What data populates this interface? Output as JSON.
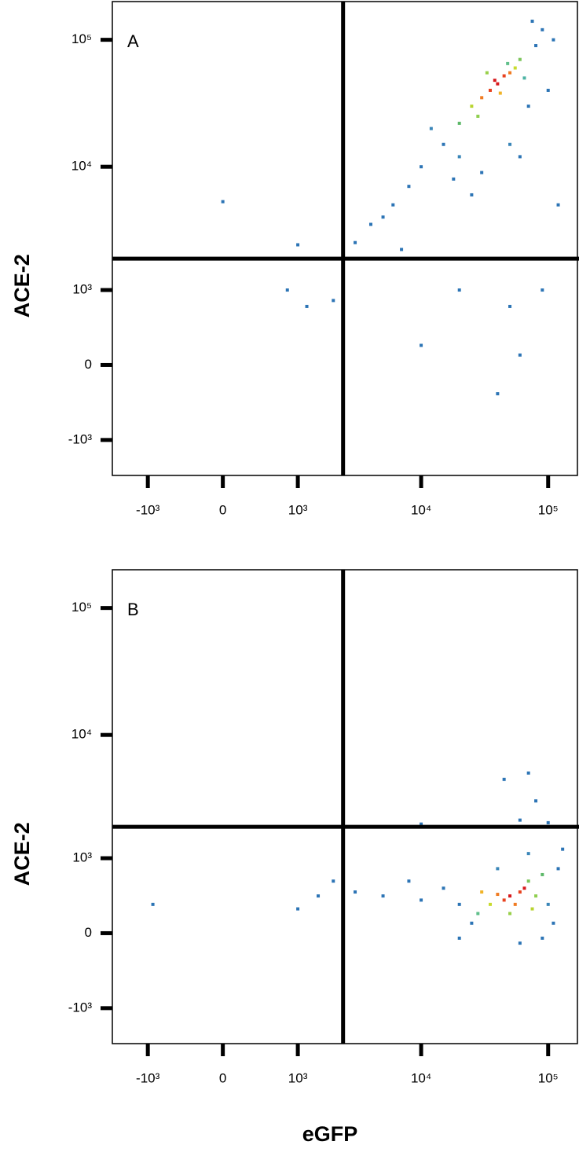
{
  "chart_data": [
    {
      "type": "scatter",
      "panel_label": "A",
      "y_label": "ACE-2",
      "xscale": "logicle",
      "yscale": "logicle",
      "xlim": [
        -2000,
        170000
      ],
      "ylim": [
        -2000,
        200000
      ],
      "xticks": [
        {
          "value": -1000,
          "label": "-10³"
        },
        0,
        {
          "value": 1000,
          "label": "10³"
        },
        {
          "value": 10000,
          "label": "10⁴"
        },
        {
          "value": 100000,
          "label": "10⁵"
        }
      ],
      "yticks": [
        {
          "value": -1000,
          "label": "-10³"
        },
        0,
        {
          "value": 1000,
          "label": "10³"
        },
        {
          "value": 10000,
          "label": "10⁴"
        },
        {
          "value": 100000,
          "label": "10⁵"
        }
      ],
      "gates": {
        "x": 2400,
        "y": 1850
      },
      "x": [
        40000,
        35000,
        45000,
        30000,
        50000,
        38000,
        25000,
        55000,
        60000,
        28000,
        42000,
        20000,
        65000,
        33000,
        48000,
        15000,
        10000,
        80000,
        90000,
        12000,
        18000,
        70000,
        100000,
        6000,
        4000,
        8000,
        30000,
        50000,
        20000,
        110000,
        75000,
        3000,
        5000,
        7000,
        25000,
        60000,
        120000,
        0,
        1000,
        800,
        1200,
        2000,
        10000,
        60000,
        40000,
        50000,
        90000,
        20000
      ],
      "y": [
        45000,
        40000,
        52000,
        35000,
        55000,
        48000,
        30000,
        60000,
        70000,
        25000,
        38000,
        22000,
        50000,
        55000,
        65000,
        15000,
        10000,
        90000,
        120000,
        20000,
        8000,
        30000,
        40000,
        5000,
        3500,
        7000,
        9000,
        15000,
        12000,
        100000,
        140000,
        2500,
        4000,
        2200,
        6000,
        12000,
        5000,
        5300,
        2400,
        1000,
        700,
        800,
        200,
        100,
        -300,
        700,
        1000,
        1000
      ],
      "point_colors": [
        "#d7191c",
        "#e8421f",
        "#e8421f",
        "#f07b22",
        "#f07b22",
        "#d7191c",
        "#b8d430",
        "#c8db2e",
        "#7cc55a",
        "#8fcf4f",
        "#f0b327",
        "#5cb868",
        "#4cb3a3",
        "#99d04a",
        "#5fbf8a",
        "#2c74b5",
        "#2c74b5",
        "#2c74b5",
        "#2c74b5",
        "#3a86b8",
        "#2c74b5",
        "#2c74b5",
        "#2c74b5",
        "#2c74b5",
        "#2c74b5",
        "#2c74b5",
        "#2c74b5",
        "#3a86b8",
        "#3a86b8",
        "#2c74b5",
        "#2c74b5",
        "#2c74b5",
        "#2c74b5",
        "#2c74b5",
        "#2c74b5",
        "#2c74b5",
        "#2c74b5",
        "#2c74b5",
        "#2c74b5",
        "#2c74b5",
        "#2c74b5",
        "#2c74b5",
        "#2c74b5",
        "#2c74b5",
        "#2c74b5",
        "#2c74b5",
        "#2c74b5",
        "#2c74b5"
      ]
    },
    {
      "type": "scatter",
      "panel_label": "B",
      "y_label": "ACE-2",
      "x_label": "eGFP",
      "xscale": "logicle",
      "yscale": "logicle",
      "xlim": [
        -2000,
        170000
      ],
      "ylim": [
        -2000,
        200000
      ],
      "xticks": [
        {
          "value": -1000,
          "label": "-10³"
        },
        0,
        {
          "value": 1000,
          "label": "10³"
        },
        {
          "value": 10000,
          "label": "10⁴"
        },
        {
          "value": 100000,
          "label": "10⁵"
        }
      ],
      "yticks": [
        {
          "value": -1000,
          "label": "-10³"
        },
        0,
        {
          "value": 1000,
          "label": "10³"
        },
        {
          "value": 10000,
          "label": "10⁴"
        },
        {
          "value": 100000,
          "label": "10⁵"
        }
      ],
      "gates": {
        "x": 2400,
        "y": 1850
      },
      "x": [
        50000,
        60000,
        45000,
        55000,
        65000,
        40000,
        35000,
        70000,
        80000,
        30000,
        90000,
        50000,
        75000,
        28000,
        20000,
        15000,
        10000,
        120000,
        100000,
        25000,
        60000,
        90000,
        5000,
        3000,
        8000,
        130000,
        40000,
        70000,
        20000,
        110000,
        45000,
        70000,
        80000,
        60000,
        10000,
        100000,
        -900,
        1000,
        1500,
        2000
      ],
      "y": [
        400,
        450,
        350,
        300,
        500,
        420,
        300,
        600,
        400,
        450,
        700,
        200,
        250,
        200,
        300,
        500,
        350,
        800,
        300,
        100,
        -100,
        -50,
        400,
        450,
        600,
        1200,
        800,
        1100,
        -50,
        100,
        4450,
        5000,
        3000,
        2100,
        1950,
        2000,
        300,
        250,
        400,
        600
      ],
      "point_colors": [
        "#d7191c",
        "#e8421f",
        "#e8421f",
        "#f07b22",
        "#d7191c",
        "#f07b22",
        "#c8db2e",
        "#7cc55a",
        "#8fcf4f",
        "#f0b327",
        "#5cb868",
        "#99d04a",
        "#b8d430",
        "#5fbf8a",
        "#2c74b5",
        "#2c74b5",
        "#2c74b5",
        "#2c74b5",
        "#3a86b8",
        "#2c74b5",
        "#2c74b5",
        "#2c74b5",
        "#2c74b5",
        "#2c74b5",
        "#2c74b5",
        "#2c74b5",
        "#3a86b8",
        "#3a86b8",
        "#2c74b5",
        "#2c74b5",
        "#2c74b5",
        "#2c74b5",
        "#2c74b5",
        "#2c74b5",
        "#2c74b5",
        "#2c74b5",
        "#2c74b5",
        "#2c74b5",
        "#2c74b5",
        "#2c74b5"
      ]
    }
  ]
}
